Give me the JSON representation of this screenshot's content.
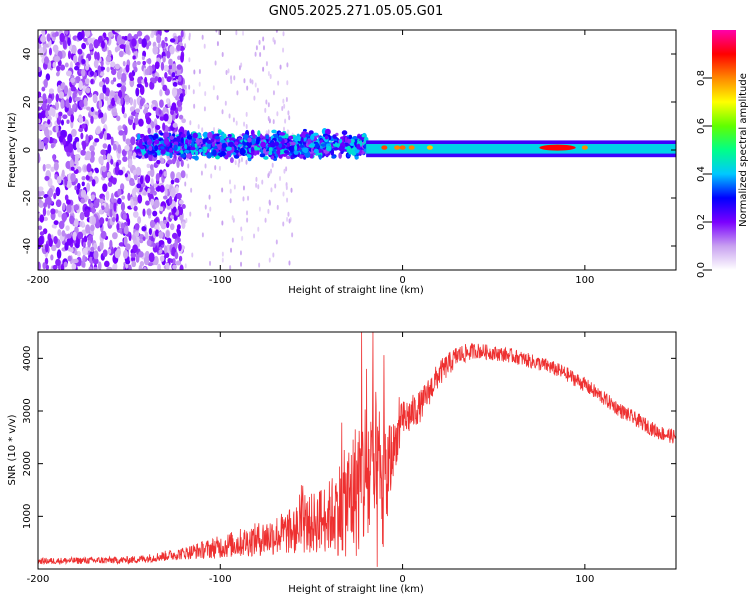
{
  "title": "GN05.2025.271.05.05.G01",
  "chart_data": [
    {
      "type": "heatmap",
      "title": "GN05.2025.271.05.05.G01",
      "xlabel": "Height of straight line (km)",
      "ylabel": "Frequency (Hz)",
      "xlim": [
        -200,
        150
      ],
      "ylim": [
        -50,
        50
      ],
      "xticks": [
        -200,
        -100,
        0,
        100
      ],
      "xtick_labels": [
        "-200",
        "-100",
        "0",
        "100"
      ],
      "yticks": [
        -40,
        -20,
        0,
        20,
        40
      ],
      "ytick_labels": [
        "-40",
        "-20",
        "0",
        "20",
        "40"
      ],
      "colorbar": {
        "label": "Normalized spectral amplitude",
        "range": [
          0,
          1
        ],
        "ticks": [
          0.0,
          0.2,
          0.4,
          0.6,
          0.8
        ],
        "tick_labels": [
          "0.0",
          "0.2",
          "0.4",
          "0.6",
          "0.8"
        ],
        "colors": [
          "#ffffff",
          "#c8a0f0",
          "#7a00ff",
          "#0000ff",
          "#00c8ff",
          "#00ff88",
          "#60ff00",
          "#ffff00",
          "#ff8800",
          "#ff0000",
          "#ff00aa"
        ]
      },
      "regions": [
        {
          "name": "scattered noise",
          "x": [
            -200,
            -120
          ],
          "freq": [
            -50,
            50
          ],
          "amplitude": 0.08
        },
        {
          "name": "signal onset band",
          "x": [
            -145,
            -20
          ],
          "freq": [
            -8,
            12
          ],
          "amplitude": 0.3
        },
        {
          "name": "main carrier line",
          "x": [
            -20,
            150
          ],
          "freq": [
            -2,
            3
          ],
          "amplitude": 0.45
        },
        {
          "name": "peak",
          "x": [
            75,
            95
          ],
          "freq": [
            0,
            2
          ],
          "amplitude": 0.9
        }
      ]
    },
    {
      "type": "line",
      "title": "",
      "xlabel": "Height of straight line (km)",
      "ylabel": "SNR (10 * v/v)",
      "xlim": [
        -200,
        150
      ],
      "ylim": [
        0,
        4500
      ],
      "xticks": [
        -200,
        -100,
        0,
        100
      ],
      "xtick_labels": [
        "-200",
        "-100",
        "0",
        "100"
      ],
      "yticks": [
        1000,
        2000,
        3000,
        4000
      ],
      "ytick_labels": [
        "1000",
        "2000",
        "3000",
        "4000"
      ],
      "color": "#ee3030",
      "envelope": {
        "x": [
          -200,
          -150,
          -140,
          -120,
          -100,
          -80,
          -60,
          -40,
          -30,
          -20,
          -15,
          -10,
          -5,
          0,
          10,
          20,
          30,
          40,
          50,
          60,
          70,
          80,
          90,
          100,
          110,
          120,
          130,
          140,
          150
        ],
        "mean": [
          150,
          170,
          200,
          300,
          420,
          560,
          720,
          1000,
          1300,
          1800,
          1600,
          1500,
          2300,
          2800,
          3100,
          3700,
          4050,
          4150,
          4100,
          4050,
          3950,
          3850,
          3700,
          3500,
          3250,
          3000,
          2800,
          2600,
          2500
        ],
        "spread": [
          60,
          70,
          80,
          120,
          220,
          320,
          450,
          700,
          1100,
          1600,
          1800,
          1400,
          500,
          400,
          300,
          250,
          200,
          150,
          140,
          140,
          140,
          140,
          140,
          140,
          140,
          140,
          140,
          140,
          140
        ]
      }
    }
  ]
}
